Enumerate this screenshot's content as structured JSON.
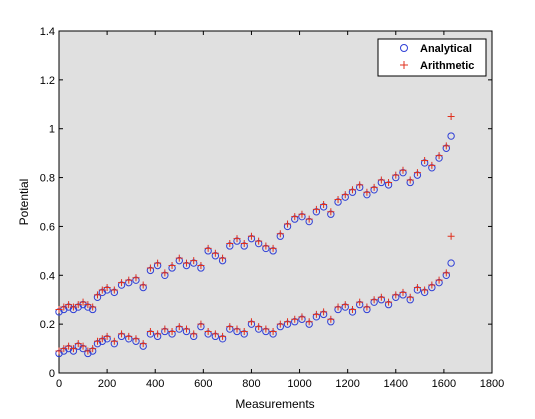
{
  "chart_data": {
    "type": "scatter",
    "xlabel": "Measurements",
    "ylabel": "Potential",
    "xlim": [
      0,
      1800
    ],
    "ylim": [
      0,
      1.4
    ],
    "xticks": [
      0,
      200,
      400,
      600,
      800,
      1000,
      1200,
      1400,
      1600,
      1800
    ],
    "yticks": [
      0,
      0.2,
      0.4,
      0.6,
      0.8,
      1,
      1.2,
      1.4
    ],
    "ytick_labels": [
      "0",
      "0.2",
      "0.4",
      "0.6",
      "0.8",
      "1",
      "1.2",
      "1.4"
    ],
    "grid": false,
    "legend_position": "top-right",
    "background_color": "#e0e0e0",
    "series": [
      {
        "name": "Analytical",
        "marker": "circle-open",
        "color": "#2f3fd6",
        "x": [
          0,
          20,
          40,
          60,
          80,
          100,
          120,
          140,
          160,
          180,
          200,
          230,
          260,
          290,
          320,
          350,
          380,
          410,
          440,
          470,
          500,
          530,
          560,
          590,
          620,
          650,
          680,
          710,
          740,
          770,
          800,
          830,
          860,
          890,
          920,
          950,
          980,
          1010,
          1040,
          1070,
          1100,
          1130,
          1160,
          1190,
          1220,
          1250,
          1280,
          1310,
          1340,
          1370,
          1400,
          1430,
          1460,
          1490,
          1520,
          1550,
          1580,
          1610,
          1630,
          0,
          20,
          40,
          60,
          80,
          100,
          120,
          140,
          160,
          180,
          200,
          230,
          260,
          290,
          320,
          350,
          380,
          410,
          440,
          470,
          500,
          530,
          560,
          590,
          620,
          650,
          680,
          710,
          740,
          770,
          800,
          830,
          860,
          890,
          920,
          950,
          980,
          1010,
          1040,
          1070,
          1100,
          1130,
          1160,
          1190,
          1220,
          1250,
          1280,
          1310,
          1340,
          1370,
          1400,
          1430,
          1460,
          1490,
          1520,
          1550,
          1580,
          1610,
          1630
        ],
        "y": [
          0.25,
          0.26,
          0.27,
          0.26,
          0.27,
          0.28,
          0.27,
          0.26,
          0.31,
          0.33,
          0.34,
          0.33,
          0.36,
          0.37,
          0.38,
          0.35,
          0.42,
          0.44,
          0.4,
          0.43,
          0.46,
          0.44,
          0.45,
          0.43,
          0.5,
          0.48,
          0.46,
          0.52,
          0.54,
          0.52,
          0.55,
          0.53,
          0.51,
          0.5,
          0.56,
          0.6,
          0.63,
          0.64,
          0.62,
          0.66,
          0.68,
          0.65,
          0.7,
          0.72,
          0.74,
          0.76,
          0.73,
          0.75,
          0.78,
          0.77,
          0.8,
          0.82,
          0.78,
          0.81,
          0.86,
          0.84,
          0.88,
          0.92,
          0.97,
          0.08,
          0.09,
          0.1,
          0.09,
          0.11,
          0.1,
          0.08,
          0.09,
          0.12,
          0.13,
          0.14,
          0.12,
          0.15,
          0.14,
          0.13,
          0.11,
          0.16,
          0.15,
          0.17,
          0.16,
          0.18,
          0.17,
          0.15,
          0.19,
          0.16,
          0.15,
          0.14,
          0.18,
          0.17,
          0.16,
          0.2,
          0.18,
          0.17,
          0.16,
          0.19,
          0.2,
          0.21,
          0.22,
          0.2,
          0.23,
          0.24,
          0.21,
          0.26,
          0.27,
          0.25,
          0.28,
          0.26,
          0.29,
          0.3,
          0.28,
          0.31,
          0.32,
          0.3,
          0.34,
          0.33,
          0.35,
          0.37,
          0.4,
          0.45
        ]
      },
      {
        "name": "Arithmetic",
        "marker": "plus",
        "color": "#e0301e",
        "x": [
          0,
          20,
          40,
          60,
          80,
          100,
          120,
          140,
          160,
          180,
          200,
          230,
          260,
          290,
          320,
          350,
          380,
          410,
          440,
          470,
          500,
          530,
          560,
          590,
          620,
          650,
          680,
          710,
          740,
          770,
          800,
          830,
          860,
          890,
          920,
          950,
          980,
          1010,
          1040,
          1070,
          1100,
          1130,
          1160,
          1190,
          1220,
          1250,
          1280,
          1310,
          1340,
          1370,
          1400,
          1430,
          1460,
          1490,
          1520,
          1550,
          1580,
          1610,
          1630,
          0,
          20,
          40,
          60,
          80,
          100,
          120,
          140,
          160,
          180,
          200,
          230,
          260,
          290,
          320,
          350,
          380,
          410,
          440,
          470,
          500,
          530,
          560,
          590,
          620,
          650,
          680,
          710,
          740,
          770,
          800,
          830,
          860,
          890,
          920,
          950,
          980,
          1010,
          1040,
          1070,
          1100,
          1130,
          1160,
          1190,
          1220,
          1250,
          1280,
          1310,
          1340,
          1370,
          1400,
          1430,
          1460,
          1490,
          1520,
          1550,
          1580,
          1610,
          1630
        ],
        "y": [
          0.26,
          0.27,
          0.28,
          0.27,
          0.28,
          0.29,
          0.28,
          0.27,
          0.32,
          0.34,
          0.35,
          0.34,
          0.37,
          0.38,
          0.39,
          0.36,
          0.43,
          0.45,
          0.41,
          0.44,
          0.47,
          0.45,
          0.46,
          0.44,
          0.51,
          0.49,
          0.47,
          0.53,
          0.55,
          0.53,
          0.56,
          0.54,
          0.52,
          0.51,
          0.57,
          0.61,
          0.64,
          0.65,
          0.63,
          0.67,
          0.69,
          0.66,
          0.71,
          0.73,
          0.75,
          0.77,
          0.74,
          0.76,
          0.79,
          0.78,
          0.81,
          0.83,
          0.79,
          0.82,
          0.87,
          0.85,
          0.89,
          0.93,
          1.05,
          0.09,
          0.1,
          0.11,
          0.1,
          0.12,
          0.11,
          0.09,
          0.1,
          0.13,
          0.14,
          0.15,
          0.13,
          0.16,
          0.15,
          0.14,
          0.12,
          0.17,
          0.16,
          0.18,
          0.17,
          0.19,
          0.18,
          0.16,
          0.2,
          0.17,
          0.16,
          0.15,
          0.19,
          0.18,
          0.17,
          0.21,
          0.19,
          0.18,
          0.17,
          0.2,
          0.21,
          0.22,
          0.23,
          0.21,
          0.24,
          0.25,
          0.22,
          0.27,
          0.28,
          0.26,
          0.29,
          0.27,
          0.3,
          0.31,
          0.29,
          0.32,
          0.33,
          0.31,
          0.35,
          0.34,
          0.36,
          0.38,
          0.41,
          0.56
        ]
      }
    ]
  }
}
